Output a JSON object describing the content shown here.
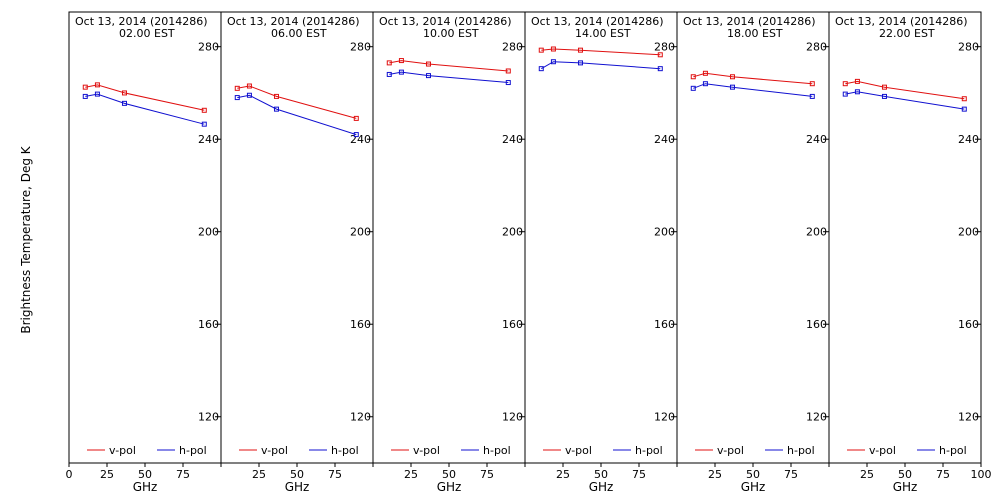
{
  "chart_data": {
    "type": "line",
    "ylabel": "Brightness Temperature, Deg K",
    "xlabel": "GHz",
    "xlim": [
      0,
      100
    ],
    "ylim": [
      100,
      295
    ],
    "yticks": [
      120,
      160,
      200,
      240,
      280
    ],
    "xticks": [
      0,
      25,
      50,
      75,
      100
    ],
    "legend": {
      "placement": "bottom",
      "entries": [
        "v-pol",
        "h-pol"
      ]
    },
    "colors": {
      "v-pol": "#e01010",
      "h-pol": "#1010d0"
    },
    "grid": false,
    "panels": [
      {
        "title_line1": "Oct 13, 2014 (2014286)",
        "title_line2": "02.00 EST",
        "series": [
          {
            "name": "v-pol",
            "x": [
              10.7,
              18.7,
              36.5,
              89.0
            ],
            "y": [
              262.5,
              263.5,
              260.0,
              252.5
            ]
          },
          {
            "name": "h-pol",
            "x": [
              10.7,
              18.7,
              36.5,
              89.0
            ],
            "y": [
              258.5,
              259.5,
              255.5,
              246.5
            ]
          }
        ]
      },
      {
        "title_line1": "Oct 13, 2014 (2014286)",
        "title_line2": "06.00 EST",
        "series": [
          {
            "name": "v-pol",
            "x": [
              10.7,
              18.7,
              36.5,
              89.0
            ],
            "y": [
              262.0,
              263.0,
              258.5,
              249.0
            ]
          },
          {
            "name": "h-pol",
            "x": [
              10.7,
              18.7,
              36.5,
              89.0
            ],
            "y": [
              258.0,
              259.0,
              253.0,
              242.0
            ]
          }
        ]
      },
      {
        "title_line1": "Oct 13, 2014 (2014286)",
        "title_line2": "10.00 EST",
        "series": [
          {
            "name": "v-pol",
            "x": [
              10.7,
              18.7,
              36.5,
              89.0
            ],
            "y": [
              273.0,
              274.0,
              272.5,
              269.5
            ]
          },
          {
            "name": "h-pol",
            "x": [
              10.7,
              18.7,
              36.5,
              89.0
            ],
            "y": [
              268.0,
              269.0,
              267.5,
              264.5
            ]
          }
        ]
      },
      {
        "title_line1": "Oct 13, 2014 (2014286)",
        "title_line2": "14.00 EST",
        "series": [
          {
            "name": "v-pol",
            "x": [
              10.7,
              18.7,
              36.5,
              89.0
            ],
            "y": [
              278.5,
              279.0,
              278.5,
              276.5
            ]
          },
          {
            "name": "h-pol",
            "x": [
              10.7,
              18.7,
              36.5,
              89.0
            ],
            "y": [
              270.5,
              273.5,
              273.0,
              270.5
            ]
          }
        ]
      },
      {
        "title_line1": "Oct 13, 2014 (2014286)",
        "title_line2": "18.00 EST",
        "series": [
          {
            "name": "v-pol",
            "x": [
              10.7,
              18.7,
              36.5,
              89.0
            ],
            "y": [
              267.0,
              268.5,
              267.0,
              264.0
            ]
          },
          {
            "name": "h-pol",
            "x": [
              10.7,
              18.7,
              36.5,
              89.0
            ],
            "y": [
              262.0,
              264.0,
              262.5,
              258.5
            ]
          }
        ]
      },
      {
        "title_line1": "Oct 13, 2014 (2014286)",
        "title_line2": "22.00 EST",
        "series": [
          {
            "name": "v-pol",
            "x": [
              10.7,
              18.7,
              36.5,
              89.0
            ],
            "y": [
              264.0,
              265.0,
              262.5,
              257.5
            ]
          },
          {
            "name": "h-pol",
            "x": [
              10.7,
              18.7,
              36.5,
              89.0
            ],
            "y": [
              259.5,
              260.5,
              258.5,
              253.0
            ]
          }
        ]
      }
    ]
  }
}
